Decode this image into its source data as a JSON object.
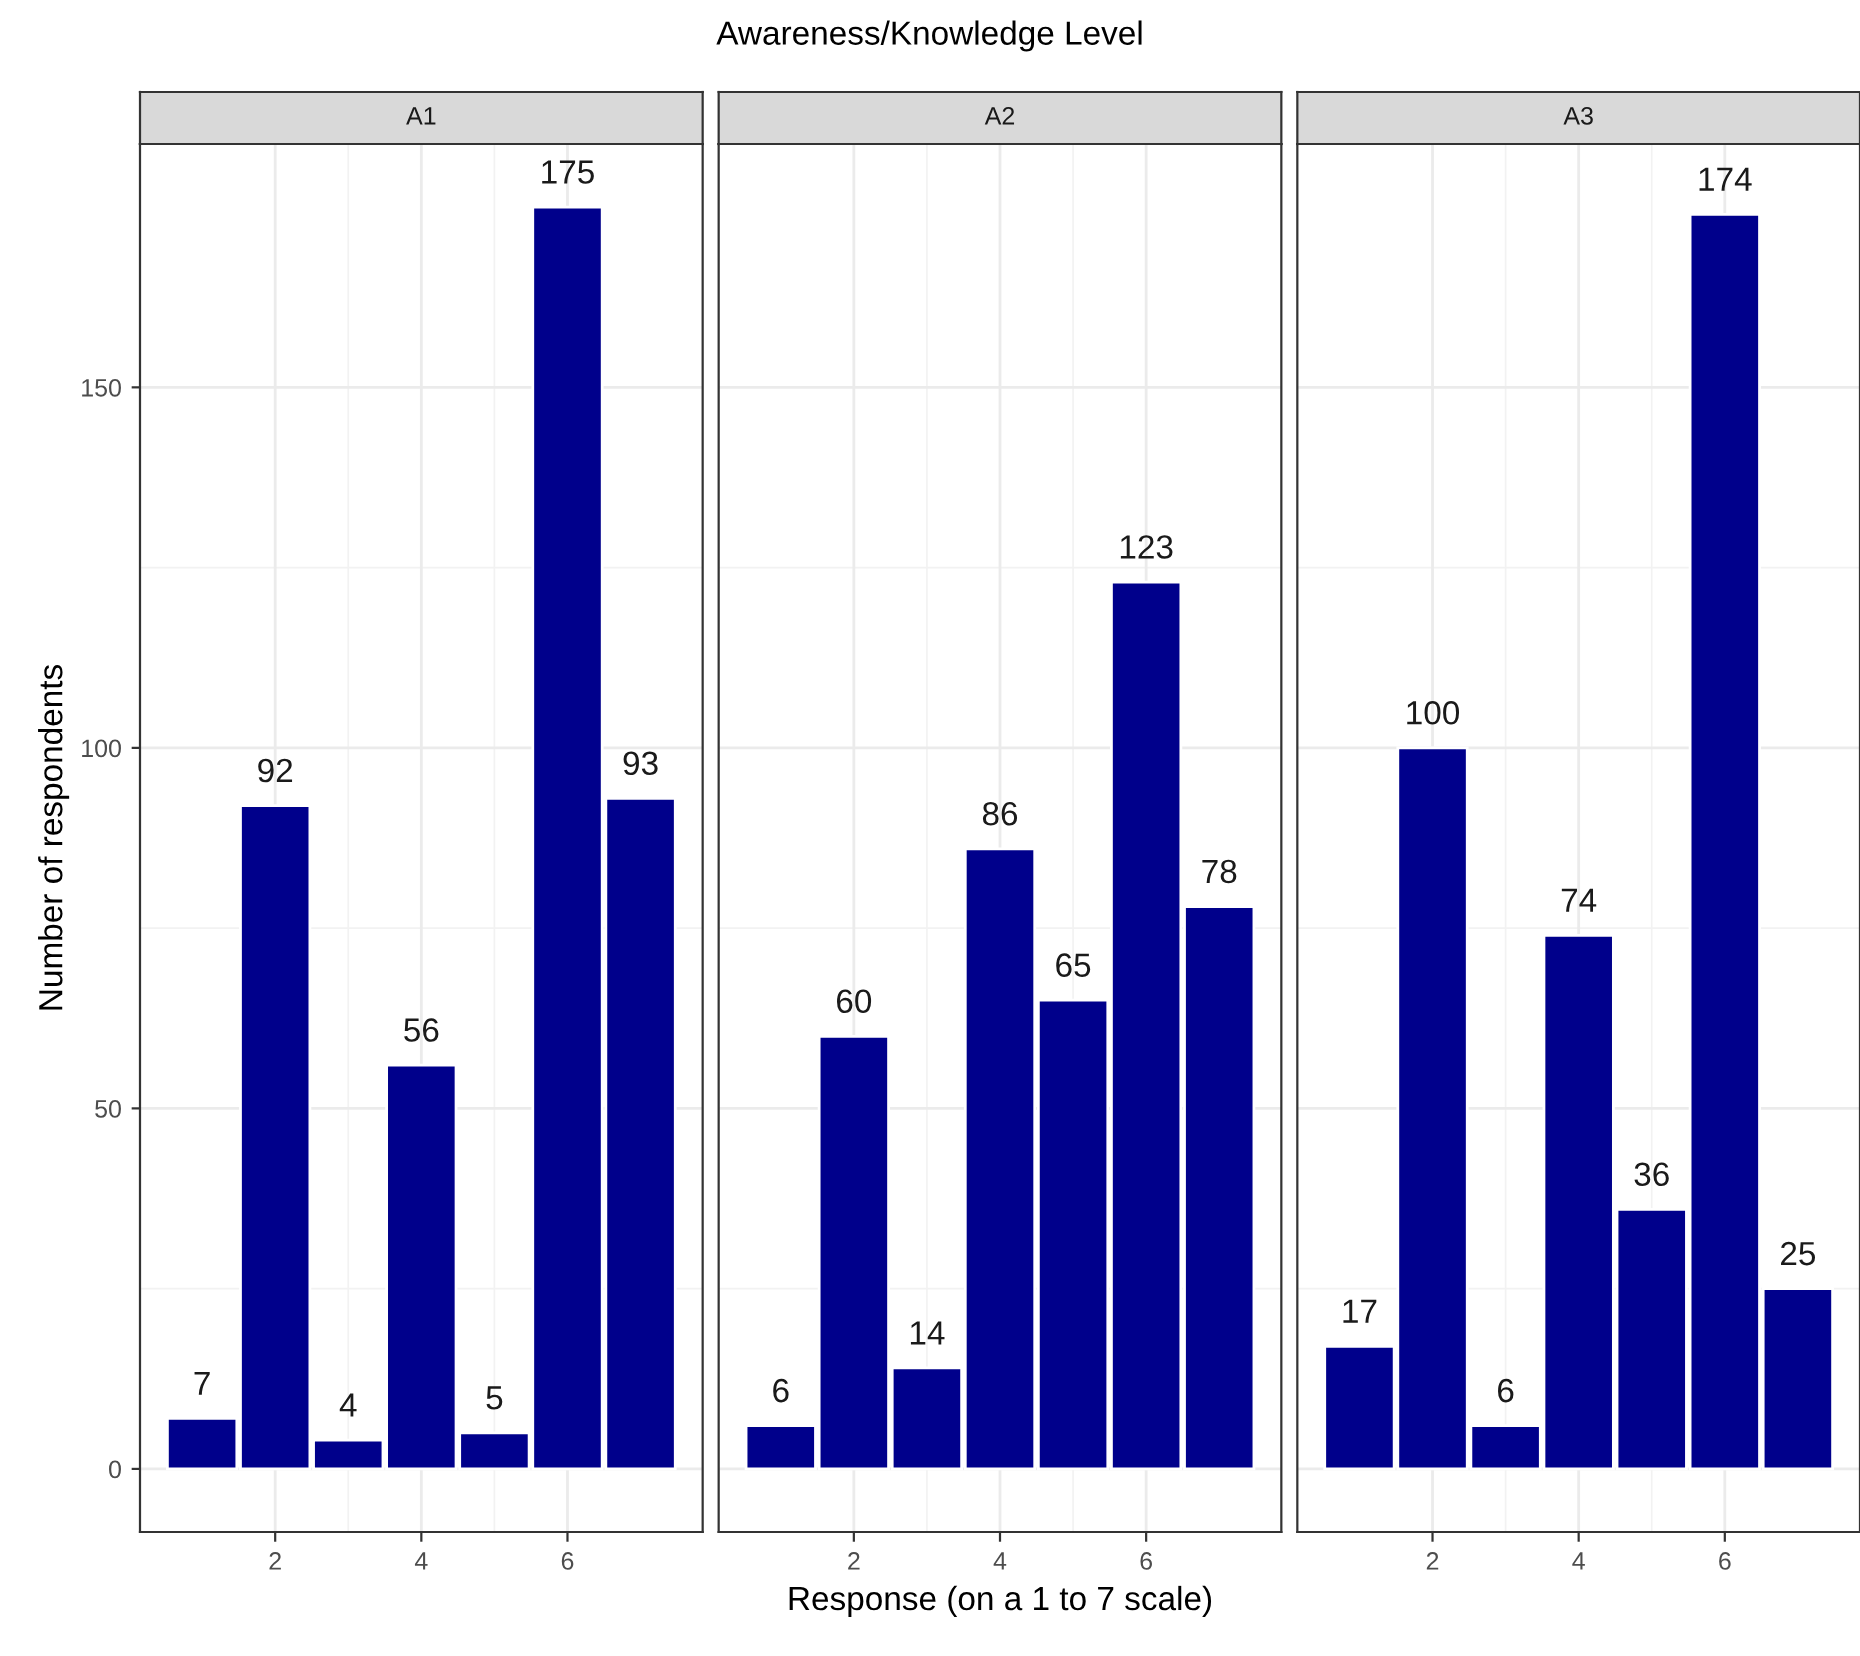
{
  "chart_data": [
    {
      "type": "bar",
      "title": "A1",
      "ylabel": "Number of respondents",
      "x": [
        1,
        2,
        3,
        4,
        5,
        6,
        7
      ],
      "values": [
        7,
        92,
        4,
        56,
        5,
        175,
        93
      ],
      "color": "#00008b",
      "xlim": [
        0.15,
        7.85
      ],
      "xticks": [
        2,
        4,
        6
      ],
      "ylim": [
        -8.75,
        183.75
      ],
      "yticks": [
        0,
        50,
        100,
        150
      ],
      "grid": true,
      "data_labels": true
    },
    {
      "type": "bar",
      "title": "A2",
      "xlabel": "Response (on a 1 to 7 scale)",
      "annotations": [
        "Awareness/Knowledge Level"
      ],
      "x": [
        1,
        2,
        3,
        4,
        5,
        6,
        7
      ],
      "values": [
        6,
        60,
        14,
        86,
        65,
        123,
        78
      ],
      "color": "#00008b",
      "xlim": [
        0.15,
        7.85
      ],
      "xticks": [
        2,
        4,
        6
      ],
      "ylim": [
        -8.75,
        183.75
      ],
      "yticks": [
        0,
        50,
        100,
        150
      ],
      "grid": true,
      "data_labels": true,
      "tick_labels": "x"
    },
    {
      "type": "bar",
      "title": "A3",
      "x": [
        1,
        2,
        3,
        4,
        5,
        6,
        7
      ],
      "values": [
        17,
        100,
        6,
        74,
        36,
        174,
        25
      ],
      "color": "#00008b",
      "xlim": [
        0.15,
        7.85
      ],
      "xticks": [
        2,
        4,
        6
      ],
      "ylim": [
        -8.75,
        183.75
      ],
      "yticks": [
        0,
        50,
        100,
        150
      ],
      "grid": true,
      "data_labels": true,
      "tick_labels": "x"
    }
  ]
}
